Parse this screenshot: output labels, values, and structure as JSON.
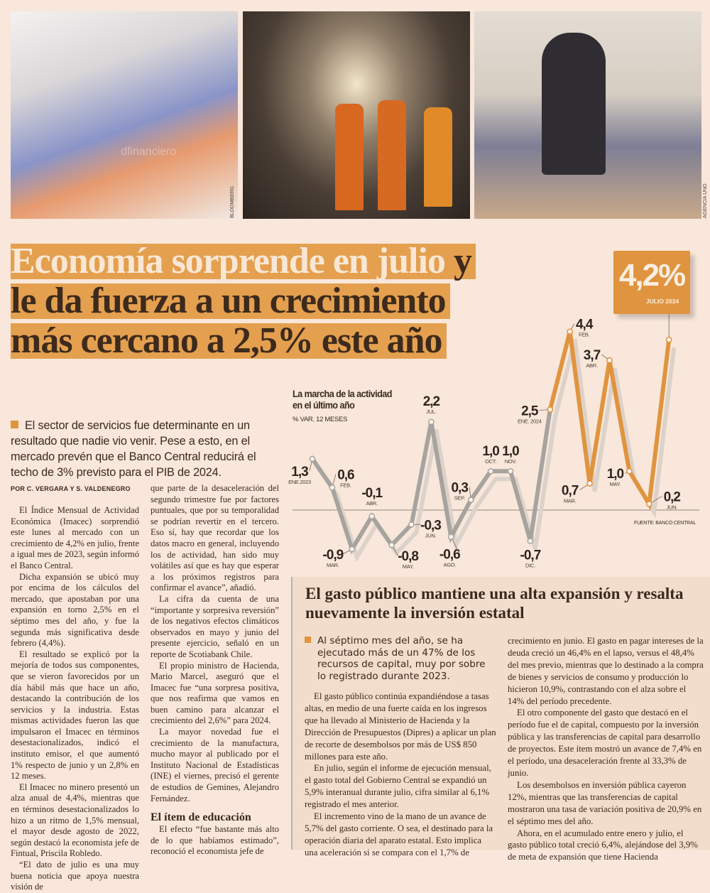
{
  "photos": {
    "credits": [
      "BLOOMBERG",
      "AGENCIA UNO"
    ],
    "watermark": "dfinanciero"
  },
  "headline": {
    "line1_light": "Economía sorprende en julio",
    "line1_dark": " y",
    "line2": "le da fuerza a un crecimiento",
    "line3": "más cercano a 2,5% este año"
  },
  "summary": "El sector de servicios fue determinante en un resultado que nadie vio venir. Pese a esto, en el mercado prevén que el Banco Central reducirá el techo de 3% previsto para el PIB de 2024.",
  "byline": "POR C. VERGARA Y S. VALDENEGRO",
  "article": {
    "col1": [
      "El Índice Mensual de Actividad Económica (Imacec) sorprendió este lunes al mercado con un crecimiento de 4,2% en julio, frente a igual mes de 2023, según informó el Banco Central.",
      "Dicha expansión se ubicó muy por encima de los cálculos del mercado, que apostaban por una expansión en torno 2,5% en el séptimo mes del año, y fue la segunda más significativa desde febrero (4,4%).",
      "El resultado se explicó por la mejoría de todos sus componentes, que se vieron favorecidos por un día hábil más que hace un año, destacando la contribución de los servicios y la industria. Estas mismas actividades fueron las que impulsaron el Imacec en términos desestacionalizados, indicó el instituto emisor, el que aumentó 1% respecto de junio y un 2,8% en 12 meses.",
      "El Imacec no minero presentó un alza anual de 4,4%, mientras que en términos desestacionalizados lo hizo a un ritmo de 1,5% mensual, el mayor desde agosto de 2022, según destacó la economista jefe de Fintual, Priscila Robledo.",
      "“El dato de julio es una muy buena noticia que apoya nuestra visión de"
    ],
    "col2": [
      "que parte de la desaceleración del segundo trimestre fue por factores puntuales, que por su temporalidad se podrían revertir en el tercero. Eso sí, hay que recordar que los datos macro en general, incluyendo los de actividad, han sido muy volátiles así que es hay que esperar a los próximos registros para confirmar el avance”, añadió.",
      "La cifra da cuenta de una “importante y sorpresiva reversión” de los negativos efectos climáticos observados en mayo y junio del presente ejercicio, señaló en un reporte de Scotiabank Chile.",
      "El propio ministro de Hacienda, Mario Marcel, aseguró que el Imacec fue “una sorpresa positiva, que nos reafirma que vamos en buen camino para alcanzar el crecimiento del 2,6%” para 2024.",
      "La mayor novedad fue el crecimiento de la manufactura, mucho mayor al publicado por el Instituto Nacional de Estadísticas (INE) el viernes, precisó el gerente de estudios de Gemines, Alejandro Fernández."
    ],
    "subhead": "El ítem de educación",
    "col2_after": [
      "El efecto “fue bastante más alto de lo que habíamos estimado”, reconoció el economista jefe de"
    ]
  },
  "chart_data": {
    "type": "line",
    "title": "La marcha de la actividad en el último año",
    "title_lines": [
      "La marcha de la actividad",
      "en el último año"
    ],
    "subtitle": "% VAR. 12 MESES",
    "source": "FUENTE: BANCO CENTRAL",
    "highlight": {
      "value": "4,2%",
      "label": "JULIO 2024"
    },
    "colors": {
      "2023": "#a7a39f",
      "2024": "#e0943f",
      "shadow": "#dcd2ca"
    },
    "x": [
      "ENE.2023",
      "FEB.",
      "MAR.",
      "ABR.",
      "MAY.",
      "JUN.",
      "JUL.",
      "AGO.",
      "SEP.",
      "OCT.",
      "NOV.",
      "DIC.",
      "ENE. 2024",
      "FEB.",
      "MAR.",
      "ABR.",
      "MAY.",
      "JUN.",
      "JUL."
    ],
    "values": [
      1.3,
      0.6,
      -0.9,
      -0.1,
      -0.8,
      -0.3,
      2.2,
      -0.6,
      0.3,
      1.0,
      1.0,
      -0.7,
      2.5,
      4.4,
      0.7,
      3.7,
      1.0,
      0.2,
      4.2
    ],
    "value_labels": [
      "1,3",
      "0,6",
      "-0,9",
      "-0,1",
      "-0,8",
      "-0,3",
      "2,2",
      "-0,6",
      "0,3",
      "1,0",
      "1,0",
      "-0,7",
      "2,5",
      "4,4",
      "0,7",
      "3,7",
      "1,0",
      "0,2",
      ""
    ],
    "grid": false
  },
  "sidebar": {
    "title": "El gasto público mantiene una alta expansión y resalta nuevamente la inversión estatal",
    "summary": "Al séptimo mes del año, se ha ejecutado más de un 47% de los recursos de capital, muy por sobre lo registrado durante 2023.",
    "col1": [
      "El gasto público continúa expandiéndose a tasas altas, en medio de una fuerte caída en los ingresos que ha llevado al Ministerio de Hacienda y la Dirección de Presupuestos (Dipres) a aplicar un plan de recorte de desembolsos por más de US$ 850 millones para este año.",
      "En julio, según el informe de ejecución mensual, el gasto total del Gobierno Central se expandió un 5,9% interanual durante julio, cifra similar al 6,1% registrado el mes anterior.",
      "El incremento vino de la mano de un avance de 5,7% del gasto corriente. O sea, el destinado para la operación diaria del aparato estatal. Esto implica una aceleración si se compara con el 1,7% de"
    ],
    "col2": [
      "crecimiento en junio. El gasto en pagar intereses de la deuda creció un 46,4% en el lapso, versus el 48,4% del mes previo, mientras que lo destinado a la compra de bienes y servicios de consumo y producción lo hicieron 10,9%, contrastando con el alza sobre el 14% del período precedente.",
      "El otro componente del gasto que destacó en el período fue el de capital, compuesto por la inversión pública y las transferencias de capital para desarrollo de proyectos. Este ítem mostró un avance de 7,4% en el período, una desaceleración frente al 33,3% de junio.",
      "Los desembolsos en inversión pública cayeron 12%, mientras que las transferencias de capital mostraron una tasa de variación positiva de 20,9% en el séptimo mes del año.",
      "Ahora, en el acumulado entre enero y julio, el gasto público total creció 6,4%, alejándose del 3,9% de meta de expansión que tiene Hacienda"
    ]
  }
}
